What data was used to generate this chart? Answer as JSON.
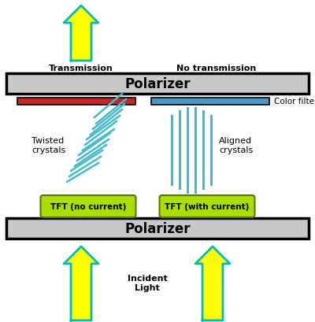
{
  "bg_color": "#ffffff",
  "polarizer_color": "#c8c8c8",
  "polarizer_border": "#000000",
  "polarizer_text": "Polarizer",
  "arrow_color": "#ffff00",
  "arrow_edge": "#00bbbb",
  "crystal_color": "#44bbcc",
  "red_filter": "#cc2222",
  "blue_filter": "#4499cc",
  "tft_bg": "#aadd00",
  "tft_border": "#557700",
  "labels": {
    "transmission": "Transmission",
    "no_transmission": "No transmission",
    "twisted": "Twisted\ncrystals",
    "aligned": "Aligned\ncrystals",
    "tft_no": "TFT (no current)",
    "tft_with": "TFT (with current)",
    "color_filters": "Color filters",
    "incident": "Incident\nLight"
  },
  "twisted_lines": [
    [
      120,
      150,
      155,
      120
    ],
    [
      122,
      158,
      160,
      127
    ],
    [
      118,
      165,
      158,
      133
    ],
    [
      115,
      172,
      155,
      140
    ],
    [
      110,
      178,
      152,
      148
    ],
    [
      108,
      185,
      148,
      155
    ],
    [
      105,
      192,
      145,
      165
    ],
    [
      100,
      198,
      140,
      170
    ],
    [
      98,
      205,
      138,
      178
    ],
    [
      95,
      212,
      135,
      185
    ],
    [
      90,
      218,
      130,
      192
    ],
    [
      88,
      225,
      128,
      200
    ],
    [
      85,
      232,
      125,
      208
    ]
  ],
  "aligned_lines": [
    [
      218,
      148,
      218,
      235
    ],
    [
      228,
      142,
      228,
      240
    ],
    [
      238,
      138,
      238,
      245
    ],
    [
      248,
      138,
      248,
      245
    ],
    [
      258,
      142,
      258,
      240
    ],
    [
      268,
      148,
      268,
      235
    ]
  ]
}
